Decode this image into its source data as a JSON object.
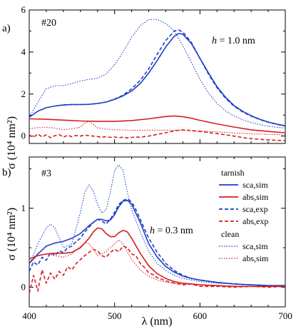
{
  "chart_data": {
    "type": "line",
    "xlabel": "λ (nm)",
    "ylabel": "σ (10⁴ nm²)",
    "xlim": [
      400,
      700
    ],
    "x_ticks": [
      "400",
      "500",
      "600",
      "700"
    ],
    "panels": [
      {
        "tag": "a)",
        "sample_label": "#20",
        "annotation_h": "h",
        "annotation_val": " = 1.0 nm",
        "ylim": [
          -0.35,
          6
        ],
        "y_ticks": [
          "0",
          "2",
          "4",
          "6"
        ],
        "y_tick_values": [
          0,
          2,
          4,
          6
        ],
        "series": [
          {
            "key": "tarnish-sca-sim",
            "color": "#1a3fc8",
            "dash": "solid",
            "x": [
              400,
              410,
              420,
              430,
              440,
              450,
              460,
              470,
              480,
              490,
              500,
              510,
              520,
              530,
              540,
              550,
              560,
              570,
              575,
              580,
              590,
              600,
              610,
              620,
              630,
              640,
              650,
              660,
              670,
              680,
              690,
              700
            ],
            "y": [
              0.9,
              1.18,
              1.35,
              1.43,
              1.48,
              1.5,
              1.5,
              1.51,
              1.55,
              1.62,
              1.75,
              1.92,
              2.15,
              2.5,
              3.0,
              3.6,
              4.25,
              4.75,
              4.88,
              4.85,
              4.4,
              3.7,
              3.0,
              2.35,
              1.85,
              1.45,
              1.18,
              0.97,
              0.8,
              0.67,
              0.57,
              0.49
            ]
          },
          {
            "key": "tarnish-sca-exp",
            "color": "#1a3fc8",
            "dash": "dashed",
            "x": [
              440,
              450,
              460,
              470,
              480,
              490,
              500,
              510,
              520,
              530,
              540,
              550,
              560,
              570,
              575,
              580,
              590,
              600,
              610,
              620,
              630,
              640,
              650,
              660,
              670,
              680,
              690,
              700
            ],
            "y": [
              1.48,
              1.5,
              1.5,
              1.51,
              1.55,
              1.62,
              1.76,
              1.95,
              2.25,
              2.65,
              3.2,
              3.9,
              4.55,
              5.0,
              5.05,
              4.95,
              4.45,
              3.7,
              2.95,
              2.3,
              1.8,
              1.42,
              1.15,
              0.95,
              0.79,
              0.66,
              0.56,
              0.48
            ]
          },
          {
            "key": "clean-sca-sim",
            "color": "#1a3fc8",
            "dash": "dotted",
            "x": [
              400,
              410,
              420,
              430,
              440,
              450,
              460,
              470,
              480,
              490,
              500,
              510,
              520,
              530,
              540,
              550,
              560,
              570,
              580,
              590,
              600,
              610,
              620,
              630,
              640,
              650,
              660,
              670,
              680,
              690,
              700
            ],
            "y": [
              0.9,
              1.6,
              2.25,
              2.4,
              2.4,
              2.5,
              2.62,
              2.7,
              2.75,
              2.95,
              3.4,
              4.0,
              4.7,
              5.25,
              5.55,
              5.55,
              5.35,
              5.0,
              4.3,
              3.5,
              2.7,
              2.05,
              1.55,
              1.2,
              0.95,
              0.78,
              0.65,
              0.55,
              0.47,
              0.42,
              0.38
            ]
          },
          {
            "key": "tarnish-abs-sim",
            "color": "#d81e1e",
            "dash": "solid",
            "x": [
              400,
              420,
              440,
              460,
              480,
              500,
              520,
              540,
              550,
              560,
              570,
              580,
              590,
              600,
              620,
              640,
              660,
              680,
              700
            ],
            "y": [
              0.82,
              0.8,
              0.76,
              0.72,
              0.7,
              0.7,
              0.74,
              0.82,
              0.88,
              0.93,
              0.96,
              0.92,
              0.85,
              0.75,
              0.58,
              0.43,
              0.3,
              0.22,
              0.16
            ]
          },
          {
            "key": "tarnish-abs-exp",
            "color": "#d81e1e",
            "dash": "dashed",
            "x": [
              400,
              405,
              410,
              415,
              420,
              425,
              430,
              435,
              440,
              445,
              450,
              455,
              460,
              465,
              470,
              475,
              480,
              485,
              490,
              495,
              500,
              505,
              510,
              515,
              520,
              525,
              530,
              535,
              540,
              545,
              550,
              555,
              560,
              565,
              570,
              575,
              580,
              585,
              590,
              595,
              600,
              605,
              610,
              615,
              620,
              625,
              630,
              635,
              640,
              645,
              650,
              655,
              660,
              665,
              670,
              675,
              680,
              685,
              690,
              695,
              700
            ],
            "y": [
              0.05,
              -0.06,
              0.1,
              -0.04,
              0.06,
              -0.08,
              0.02,
              0.07,
              -0.05,
              0.04,
              -0.03,
              0.03,
              0.0,
              0.05,
              0.02,
              0.0,
              -0.02,
              -0.05,
              -0.03,
              -0.06,
              -0.04,
              -0.08,
              -0.05,
              -0.09,
              -0.06,
              -0.04,
              -0.06,
              -0.02,
              0.0,
              0.04,
              0.08,
              0.12,
              0.16,
              0.2,
              0.25,
              0.28,
              0.3,
              0.28,
              0.26,
              0.24,
              0.22,
              0.2,
              0.17,
              0.14,
              0.12,
              0.09,
              0.06,
              0.03,
              0.0,
              -0.03,
              -0.07,
              -0.1,
              -0.12,
              -0.14,
              -0.15,
              -0.17,
              -0.18,
              -0.19,
              -0.2,
              -0.21,
              -0.21
            ]
          },
          {
            "key": "clean-abs-sim",
            "color": "#d81e1e",
            "dash": "dotted",
            "x": [
              400,
              410,
              420,
              430,
              440,
              450,
              460,
              465,
              470,
              475,
              480,
              490,
              500,
              520,
              540,
              560,
              580,
              600,
              620,
              640,
              660,
              680,
              700
            ],
            "y": [
              0.35,
              0.4,
              0.42,
              0.38,
              0.3,
              0.35,
              0.42,
              0.62,
              0.7,
              0.55,
              0.4,
              0.33,
              0.3,
              0.28,
              0.28,
              0.28,
              0.27,
              0.24,
              0.2,
              0.15,
              0.11,
              0.08,
              0.06
            ]
          }
        ]
      },
      {
        "tag": "b)",
        "sample_label": "#3",
        "annotation_h": "h",
        "annotation_val": " = 0.3 nm",
        "ylim": [
          -0.25,
          1.65
        ],
        "y_ticks": [
          "0",
          "1"
        ],
        "y_tick_values": [
          0,
          1
        ],
        "series": [
          {
            "key": "tarnish-sca-sim",
            "color": "#1a3fc8",
            "dash": "solid",
            "x": [
              400,
              410,
              420,
              430,
              440,
              450,
              460,
              470,
              480,
              485,
              490,
              495,
              500,
              505,
              510,
              515,
              520,
              530,
              540,
              550,
              560,
              570,
              580,
              590,
              600,
              620,
              640,
              660,
              680,
              700
            ],
            "y": [
              0.3,
              0.42,
              0.52,
              0.56,
              0.58,
              0.62,
              0.68,
              0.78,
              0.86,
              0.86,
              0.84,
              0.85,
              0.92,
              1.02,
              1.09,
              1.1,
              1.05,
              0.82,
              0.55,
              0.38,
              0.26,
              0.19,
              0.14,
              0.11,
              0.09,
              0.06,
              0.04,
              0.03,
              0.02,
              0.02
            ]
          },
          {
            "key": "tarnish-sca-exp",
            "color": "#1a3fc8",
            "dash": "dashed",
            "x": [
              400,
              405,
              410,
              415,
              420,
              425,
              430,
              435,
              440,
              445,
              450,
              455,
              460,
              465,
              470,
              475,
              480,
              485,
              490,
              495,
              500,
              505,
              510,
              515,
              520,
              525,
              530,
              540,
              550,
              560,
              570,
              580,
              590,
              600,
              620,
              640,
              660,
              680,
              700
            ],
            "y": [
              0.2,
              0.32,
              0.28,
              0.38,
              0.34,
              0.44,
              0.4,
              0.46,
              0.44,
              0.5,
              0.52,
              0.58,
              0.62,
              0.7,
              0.76,
              0.82,
              0.86,
              0.84,
              0.8,
              0.86,
              0.95,
              1.05,
              1.1,
              1.12,
              1.08,
              0.98,
              0.86,
              0.62,
              0.44,
              0.3,
              0.21,
              0.15,
              0.11,
              0.09,
              0.06,
              0.04,
              0.03,
              0.02,
              0.02
            ]
          },
          {
            "key": "clean-sca-sim",
            "color": "#1a3fc8",
            "dash": "dotted",
            "x": [
              400,
              410,
              420,
              425,
              430,
              440,
              450,
              460,
              465,
              470,
              475,
              480,
              485,
              490,
              495,
              500,
              505,
              510,
              515,
              520,
              530,
              540,
              550,
              560,
              570,
              580,
              590,
              600,
              620,
              640,
              660,
              680,
              700
            ],
            "y": [
              0.28,
              0.55,
              0.75,
              0.8,
              0.75,
              0.5,
              0.55,
              0.95,
              1.2,
              1.3,
              1.22,
              1.05,
              0.94,
              0.98,
              1.2,
              1.48,
              1.55,
              1.48,
              1.2,
              0.98,
              0.7,
              0.45,
              0.3,
              0.21,
              0.15,
              0.11,
              0.09,
              0.07,
              0.05,
              0.04,
              0.03,
              0.02,
              0.02
            ]
          },
          {
            "key": "tarnish-abs-sim",
            "color": "#d81e1e",
            "dash": "solid",
            "x": [
              400,
              410,
              420,
              430,
              440,
              450,
              460,
              470,
              475,
              480,
              485,
              490,
              495,
              500,
              505,
              510,
              515,
              520,
              530,
              540,
              550,
              560,
              570,
              580,
              590,
              600,
              620,
              640,
              660,
              680,
              700
            ],
            "y": [
              0.36,
              0.4,
              0.42,
              0.43,
              0.43,
              0.44,
              0.5,
              0.62,
              0.7,
              0.75,
              0.74,
              0.68,
              0.64,
              0.64,
              0.69,
              0.72,
              0.7,
              0.62,
              0.43,
              0.27,
              0.17,
              0.11,
              0.07,
              0.05,
              0.04,
              0.03,
              0.02,
              0.01,
              0.01,
              0.01,
              0.01
            ]
          },
          {
            "key": "tarnish-abs-exp",
            "color": "#d81e1e",
            "dash": "dashed",
            "x": [
              400,
              405,
              410,
              415,
              420,
              425,
              430,
              435,
              440,
              445,
              450,
              455,
              460,
              465,
              470,
              475,
              480,
              485,
              490,
              495,
              500,
              505,
              510,
              515,
              520,
              525,
              530,
              535,
              540,
              545,
              550,
              555,
              560,
              570,
              580,
              590,
              600,
              620,
              640,
              660,
              680,
              700
            ],
            "y": [
              -0.08,
              0.15,
              -0.05,
              0.22,
              0.05,
              0.18,
              0.1,
              0.2,
              0.15,
              0.26,
              0.22,
              0.3,
              0.35,
              0.4,
              0.44,
              0.48,
              0.46,
              0.4,
              0.38,
              0.44,
              0.48,
              0.45,
              0.52,
              0.5,
              0.42,
              0.4,
              0.3,
              0.25,
              0.18,
              0.16,
              0.12,
              0.1,
              0.08,
              0.05,
              0.03,
              0.04,
              0.01,
              0.01,
              0.0,
              0.01,
              0.0,
              0.01
            ]
          },
          {
            "key": "clean-abs-sim",
            "color": "#d81e1e",
            "dash": "dotted",
            "x": [
              400,
              410,
              420,
              430,
              440,
              450,
              460,
              465,
              470,
              475,
              480,
              490,
              500,
              505,
              510,
              515,
              520,
              530,
              540,
              550,
              560,
              570,
              580,
              600,
              620,
              640,
              660,
              680,
              700
            ],
            "y": [
              0.3,
              0.4,
              0.42,
              0.4,
              0.38,
              0.42,
              0.52,
              0.56,
              0.55,
              0.48,
              0.4,
              0.45,
              0.55,
              0.6,
              0.55,
              0.45,
              0.35,
              0.22,
              0.14,
              0.09,
              0.06,
              0.05,
              0.04,
              0.03,
              0.02,
              0.01,
              0.01,
              0.01,
              0.01
            ]
          }
        ]
      }
    ],
    "legend": {
      "placement": "right",
      "groups": [
        {
          "heading": "tarnish",
          "entries": [
            {
              "label": "sca,sim",
              "color": "#1a3fc8",
              "dash": "solid"
            },
            {
              "label": "abs,sim",
              "color": "#d81e1e",
              "dash": "solid"
            },
            {
              "label": "sca,exp",
              "color": "#1a3fc8",
              "dash": "dashed"
            },
            {
              "label": "abs,exp",
              "color": "#d81e1e",
              "dash": "dashed"
            }
          ]
        },
        {
          "heading": "clean",
          "entries": [
            {
              "label": "sca,sim",
              "color": "#1a3fc8",
              "dash": "dotted"
            },
            {
              "label": "abs,sim",
              "color": "#d81e1e",
              "dash": "dotted"
            }
          ]
        }
      ]
    }
  }
}
